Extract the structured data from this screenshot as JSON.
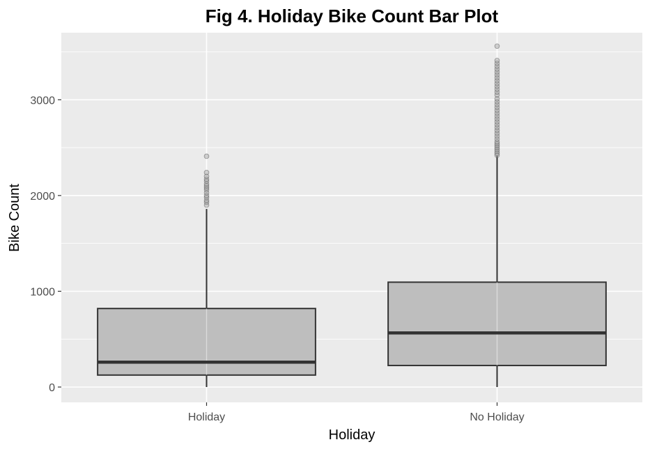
{
  "chart_data": {
    "type": "boxplot",
    "title": "Fig 4. Holiday Bike Count Bar Plot",
    "xlabel": "Holiday",
    "ylabel": "Bike Count",
    "categories": [
      "Holiday",
      "No Holiday"
    ],
    "ylim": [
      -160,
      3700
    ],
    "yticks": [
      0,
      1000,
      2000,
      3000
    ],
    "grid": true,
    "legend": "none",
    "colors": {
      "panel": "#ebebeb",
      "grid_major": "#ffffff",
      "box_fill": "#bebebe",
      "box_line": "#333333",
      "outlier": "#9e9e9e"
    },
    "boxes": [
      {
        "category": "Holiday",
        "whisker_low": 0,
        "q1": 125,
        "median": 260,
        "q3": 820,
        "whisker_high": 1860,
        "outliers": [
          1900,
          1930,
          1950,
          1980,
          2000,
          2030,
          2060,
          2080,
          2100,
          2120,
          2150,
          2170,
          2200,
          2240,
          2410
        ]
      },
      {
        "category": "No Holiday",
        "whisker_low": 0,
        "q1": 225,
        "median": 565,
        "q3": 1095,
        "whisker_high": 2415,
        "outliers": [
          2420,
          2440,
          2460,
          2480,
          2500,
          2520,
          2540,
          2560,
          2590,
          2620,
          2650,
          2680,
          2710,
          2740,
          2770,
          2800,
          2830,
          2860,
          2890,
          2920,
          2950,
          2980,
          3010,
          3050,
          3080,
          3110,
          3140,
          3170,
          3200,
          3230,
          3260,
          3290,
          3320,
          3350,
          3380,
          3410,
          3560
        ]
      }
    ]
  }
}
